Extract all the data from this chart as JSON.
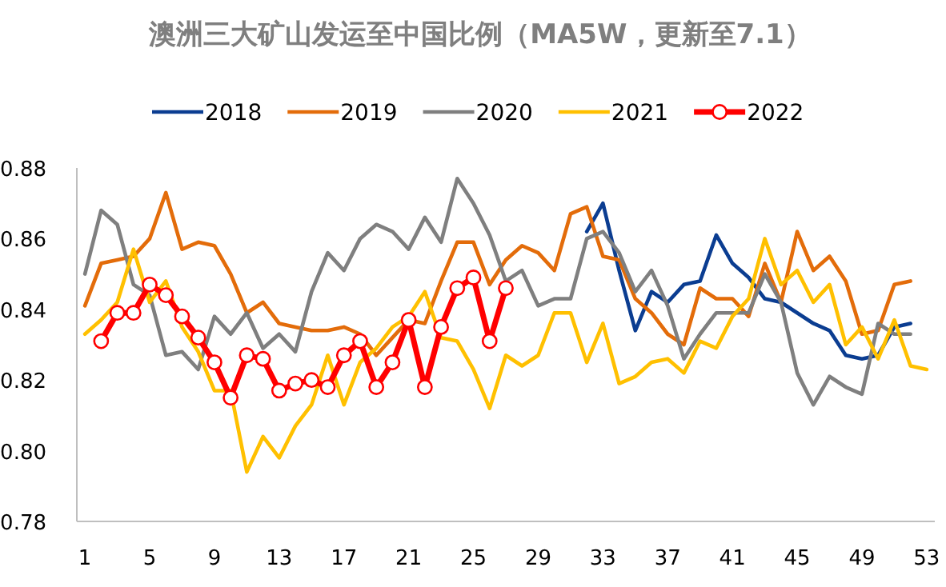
{
  "chart_data": {
    "type": "line",
    "title": "澳洲三大矿山发运至中国比例（MA5W，更新至7.1）",
    "categories": [
      "1",
      null,
      null,
      null,
      "5",
      null,
      null,
      null,
      "9",
      null,
      null,
      null,
      "13",
      null,
      null,
      null,
      "17",
      null,
      null,
      null,
      "21",
      null,
      null,
      null,
      "25",
      null,
      null,
      null,
      "29",
      null,
      null,
      null,
      "33",
      null,
      null,
      null,
      "37",
      null,
      null,
      null,
      "41",
      null,
      null,
      null,
      "45",
      null,
      null,
      null,
      "49",
      null,
      null,
      null,
      "53"
    ],
    "series": [
      {
        "name": "2018",
        "color": "#0b3d91",
        "marker": "none",
        "values": [
          null,
          null,
          null,
          null,
          null,
          null,
          null,
          null,
          null,
          null,
          null,
          null,
          null,
          null,
          null,
          null,
          null,
          null,
          null,
          null,
          null,
          null,
          null,
          null,
          null,
          null,
          null,
          null,
          null,
          null,
          null,
          0.862,
          0.87,
          0.851,
          0.834,
          0.845,
          0.842,
          0.847,
          0.848,
          0.861,
          0.853,
          0.849,
          0.843,
          0.842,
          0.839,
          0.836,
          0.834,
          0.827,
          0.826,
          0.827,
          0.835,
          0.836,
          null
        ]
      },
      {
        "name": "2019",
        "color": "#e36c0a",
        "marker": "none",
        "values": [
          0.841,
          0.853,
          0.854,
          0.855,
          0.86,
          0.873,
          0.857,
          0.859,
          0.858,
          0.85,
          0.839,
          0.842,
          0.836,
          0.835,
          0.834,
          0.834,
          0.835,
          0.833,
          0.827,
          0.832,
          0.837,
          0.836,
          0.848,
          0.859,
          0.859,
          0.847,
          0.854,
          0.858,
          0.856,
          0.851,
          0.867,
          0.869,
          0.855,
          0.854,
          0.843,
          0.839,
          0.833,
          0.83,
          0.846,
          0.843,
          0.843,
          0.838,
          0.853,
          0.842,
          0.862,
          0.851,
          0.855,
          0.848,
          0.833,
          0.834,
          0.847,
          0.848,
          null
        ]
      },
      {
        "name": "2020",
        "color": "#7f7f7f",
        "marker": "none",
        "values": [
          0.85,
          0.868,
          0.864,
          0.847,
          0.844,
          0.827,
          0.828,
          0.823,
          0.838,
          0.833,
          0.839,
          0.829,
          0.833,
          0.828,
          0.845,
          0.856,
          0.851,
          0.86,
          0.864,
          0.862,
          0.857,
          0.866,
          0.859,
          0.877,
          0.87,
          0.861,
          0.848,
          0.851,
          0.841,
          0.843,
          0.843,
          0.86,
          0.862,
          0.856,
          0.845,
          0.851,
          0.841,
          0.826,
          0.833,
          0.839,
          0.839,
          0.839,
          0.85,
          0.842,
          0.822,
          0.813,
          0.821,
          0.818,
          0.816,
          0.836,
          0.833,
          0.833,
          null
        ]
      },
      {
        "name": "2021",
        "color": "#ffc000",
        "marker": "none",
        "values": [
          0.833,
          0.837,
          0.842,
          0.857,
          0.842,
          0.848,
          0.835,
          0.828,
          0.817,
          0.817,
          0.794,
          0.804,
          0.798,
          0.807,
          0.813,
          0.827,
          0.813,
          0.825,
          0.829,
          0.835,
          0.838,
          0.845,
          0.832,
          0.831,
          0.823,
          0.812,
          0.827,
          0.824,
          0.827,
          0.839,
          0.839,
          0.825,
          0.836,
          0.819,
          0.821,
          0.825,
          0.826,
          0.822,
          0.831,
          0.829,
          0.838,
          0.843,
          0.86,
          0.847,
          0.851,
          0.842,
          0.847,
          0.83,
          0.835,
          0.826,
          0.837,
          0.824,
          0.823
        ]
      },
      {
        "name": "2022",
        "color": "#ff0000",
        "marker": "circle",
        "values": [
          null,
          0.831,
          0.839,
          0.839,
          0.847,
          0.844,
          0.838,
          0.832,
          0.825,
          0.815,
          0.827,
          0.826,
          0.817,
          0.819,
          0.82,
          0.818,
          0.827,
          0.831,
          0.818,
          0.825,
          0.837,
          0.818,
          0.835,
          0.846,
          0.849,
          0.831,
          0.846,
          null,
          null,
          null,
          null,
          null,
          null,
          null,
          null,
          null,
          null,
          null,
          null,
          null,
          null,
          null,
          null,
          null,
          null,
          null,
          null,
          null,
          null,
          null,
          null,
          null,
          null
        ]
      }
    ],
    "ylim": [
      0.78,
      0.88
    ],
    "yticks": [
      {
        "value": 0.78,
        "label": "0.78"
      },
      {
        "value": 0.8,
        "label": "0.80"
      },
      {
        "value": 0.82,
        "label": "0.82"
      },
      {
        "value": 0.84,
        "label": "0.84"
      },
      {
        "value": 0.86,
        "label": "0.86"
      },
      {
        "value": 0.88,
        "label": "0.88"
      }
    ],
    "grid": false,
    "legend": "top"
  }
}
